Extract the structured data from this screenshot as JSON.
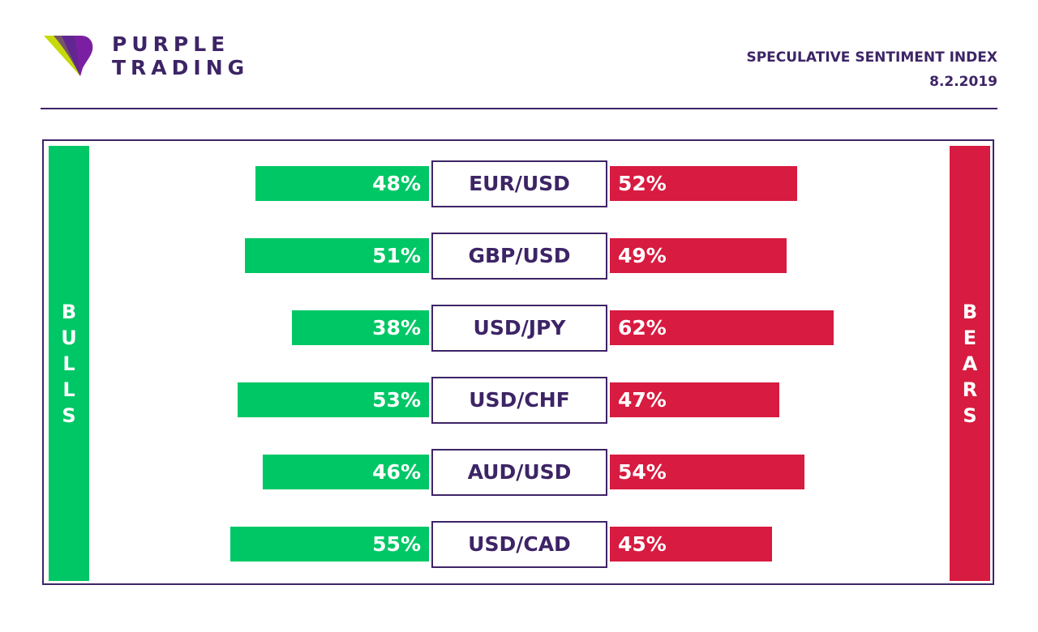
{
  "brand": {
    "line1": "PURPLE",
    "line2": "TRADING",
    "logo_icon": "purple-trading-logo-icon",
    "colors": {
      "purple": "#3d2466",
      "violet": "#7b1fa2",
      "lime": "#c6d90b"
    }
  },
  "header": {
    "title": "SPECULATIVE SENTIMENT INDEX",
    "date": "8.2.2019"
  },
  "sides": {
    "bulls": "BULLS",
    "bears": "BEARS"
  },
  "colors": {
    "bulls": "#00c766",
    "bears": "#d81b40",
    "frame": "#3d2466"
  },
  "chart_data": {
    "type": "bar",
    "categories": [
      "EUR/USD",
      "GBP/USD",
      "USD/JPY",
      "USD/CHF",
      "AUD/USD",
      "USD/CAD"
    ],
    "series": [
      {
        "name": "BULLS",
        "values": [
          48,
          51,
          38,
          53,
          46,
          55
        ]
      },
      {
        "name": "BEARS",
        "values": [
          52,
          49,
          62,
          47,
          54,
          45
        ]
      }
    ],
    "ylim": [
      0,
      100
    ],
    "unit": "%",
    "legend": "none"
  }
}
